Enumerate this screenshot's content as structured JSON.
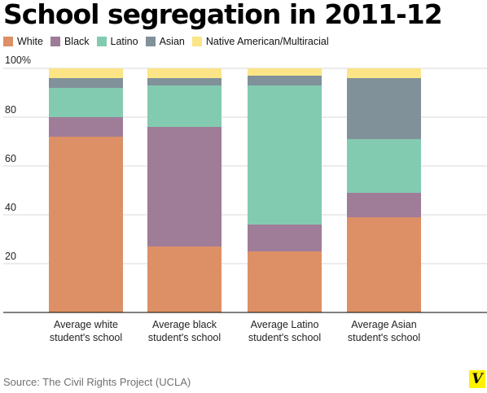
{
  "title": "School segregation in 2011-12",
  "legend": [
    {
      "label": "White",
      "color": "#dd9065"
    },
    {
      "label": "Black",
      "color": "#9f7c98"
    },
    {
      "label": "Latino",
      "color": "#83cbb0"
    },
    {
      "label": "Asian",
      "color": "#81919a"
    },
    {
      "label": "Native American/Multiracial",
      "color": "#fbe586"
    }
  ],
  "source": "Source: The Civil Rights Project (UCLA)",
  "logo_text": "V",
  "chart_data": {
    "type": "bar",
    "stacked": true,
    "categories": [
      [
        "Average white",
        "student's school"
      ],
      [
        "Average black",
        "student's school"
      ],
      [
        "Average Latino",
        "student's school"
      ],
      [
        "Average Asian",
        "student's school"
      ]
    ],
    "series": [
      {
        "name": "White",
        "color": "#dd9065",
        "values": [
          72,
          27,
          25,
          39
        ]
      },
      {
        "name": "Black",
        "color": "#9f7c98",
        "values": [
          8,
          49,
          11,
          10
        ]
      },
      {
        "name": "Latino",
        "color": "#83cbb0",
        "values": [
          12,
          17,
          57,
          22
        ]
      },
      {
        "name": "Asian",
        "color": "#81919a",
        "values": [
          4,
          3,
          4,
          25
        ]
      },
      {
        "name": "Native American/Multiracial",
        "color": "#fbe586",
        "values": [
          4,
          4,
          3,
          4
        ]
      }
    ],
    "yticks": [
      20,
      40,
      60,
      80
    ],
    "ytop_label": "100%",
    "ylim": [
      0,
      100
    ],
    "grid": true,
    "legend_position": "top-left"
  }
}
